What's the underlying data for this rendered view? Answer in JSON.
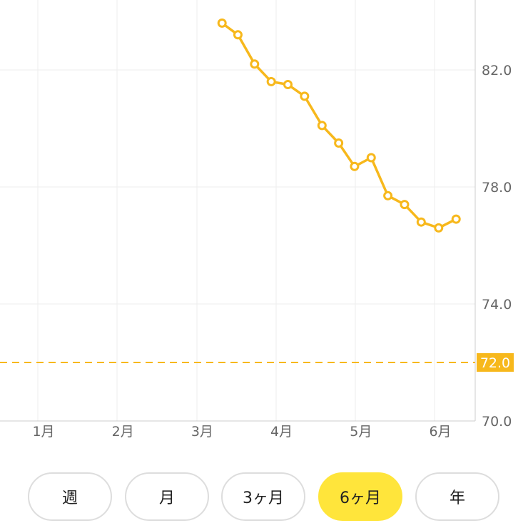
{
  "chart_data": {
    "type": "line",
    "x_labels": [
      "1月",
      "2月",
      "3月",
      "4月",
      "5月",
      "6月"
    ],
    "y_ticks": [
      "70.0",
      "74.0",
      "78.0",
      "82.0"
    ],
    "ylim": [
      70.0,
      84.0
    ],
    "goal": {
      "value": 72.0,
      "label": "72.0"
    },
    "grid": true,
    "y_axis_side": "right",
    "series": [
      {
        "color": "#f7b81c",
        "points": [
          {
            "x": 3.25,
            "y": 83.6
          },
          {
            "x": 3.45,
            "y": 83.2
          },
          {
            "x": 3.66,
            "y": 82.2
          },
          {
            "x": 3.87,
            "y": 81.6
          },
          {
            "x": 4.08,
            "y": 81.5
          },
          {
            "x": 4.29,
            "y": 81.1
          },
          {
            "x": 4.51,
            "y": 80.1
          },
          {
            "x": 4.72,
            "y": 79.5
          },
          {
            "x": 4.92,
            "y": 78.7
          },
          {
            "x": 5.13,
            "y": 79.0
          },
          {
            "x": 5.34,
            "y": 77.7
          },
          {
            "x": 5.55,
            "y": 77.4
          },
          {
            "x": 5.76,
            "y": 76.8
          },
          {
            "x": 5.98,
            "y": 76.6
          },
          {
            "x": 6.2,
            "y": 76.9
          }
        ]
      }
    ]
  },
  "tabs": [
    {
      "label": "週",
      "active": false
    },
    {
      "label": "月",
      "active": false
    },
    {
      "label": "3ヶ月",
      "active": false
    },
    {
      "label": "6ヶ月",
      "active": true
    },
    {
      "label": "年",
      "active": false
    }
  ],
  "colors": {
    "accent": "#f7b81c",
    "active_tab": "#ffe53b",
    "grid": "#eeeeee"
  }
}
